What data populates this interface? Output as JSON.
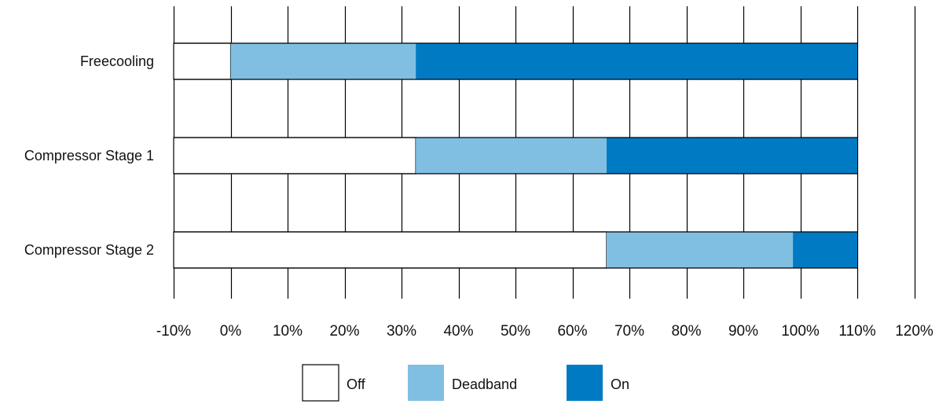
{
  "chart_data": {
    "type": "bar",
    "orientation": "horizontal",
    "stacked": true,
    "title": "",
    "xlabel": "",
    "ylabel": "",
    "categories": [
      "Freecooling",
      "Compressor Stage 1",
      "Compressor Stage 2"
    ],
    "xlim": [
      -10,
      120
    ],
    "xticks": [
      -10,
      0,
      10,
      20,
      30,
      40,
      50,
      60,
      70,
      80,
      90,
      100,
      110,
      120
    ],
    "xtick_labels": [
      "-10%",
      "0%",
      "10%",
      "20%",
      "30%",
      "40%",
      "50%",
      "60%",
      "70%",
      "80%",
      "90%",
      "100%",
      "110%",
      "120%"
    ],
    "segments": [
      {
        "category": "Freecooling",
        "state": "Off",
        "start": -10,
        "end": 0
      },
      {
        "category": "Freecooling",
        "state": "Deadband",
        "start": 0,
        "end": 32.5
      },
      {
        "category": "Freecooling",
        "state": "On",
        "start": 32.5,
        "end": 110
      },
      {
        "category": "Compressor Stage 1",
        "state": "Off",
        "start": -10,
        "end": 32.5
      },
      {
        "category": "Compressor Stage 1",
        "state": "Deadband",
        "start": 32.5,
        "end": 66
      },
      {
        "category": "Compressor Stage 1",
        "state": "On",
        "start": 66,
        "end": 110
      },
      {
        "category": "Compressor Stage 2",
        "state": "Off",
        "start": -10,
        "end": 66
      },
      {
        "category": "Compressor Stage 2",
        "state": "Deadband",
        "start": 66,
        "end": 98.7
      },
      {
        "category": "Compressor Stage 2",
        "state": "On",
        "start": 98.7,
        "end": 110
      }
    ],
    "legend": {
      "placement": "bottom",
      "entries": [
        {
          "label": "Off",
          "color": "#ffffff"
        },
        {
          "label": "Deadband",
          "color": "#80bfe2"
        },
        {
          "label": "On",
          "color": "#007bc3"
        }
      ]
    },
    "grid": "vertical"
  }
}
